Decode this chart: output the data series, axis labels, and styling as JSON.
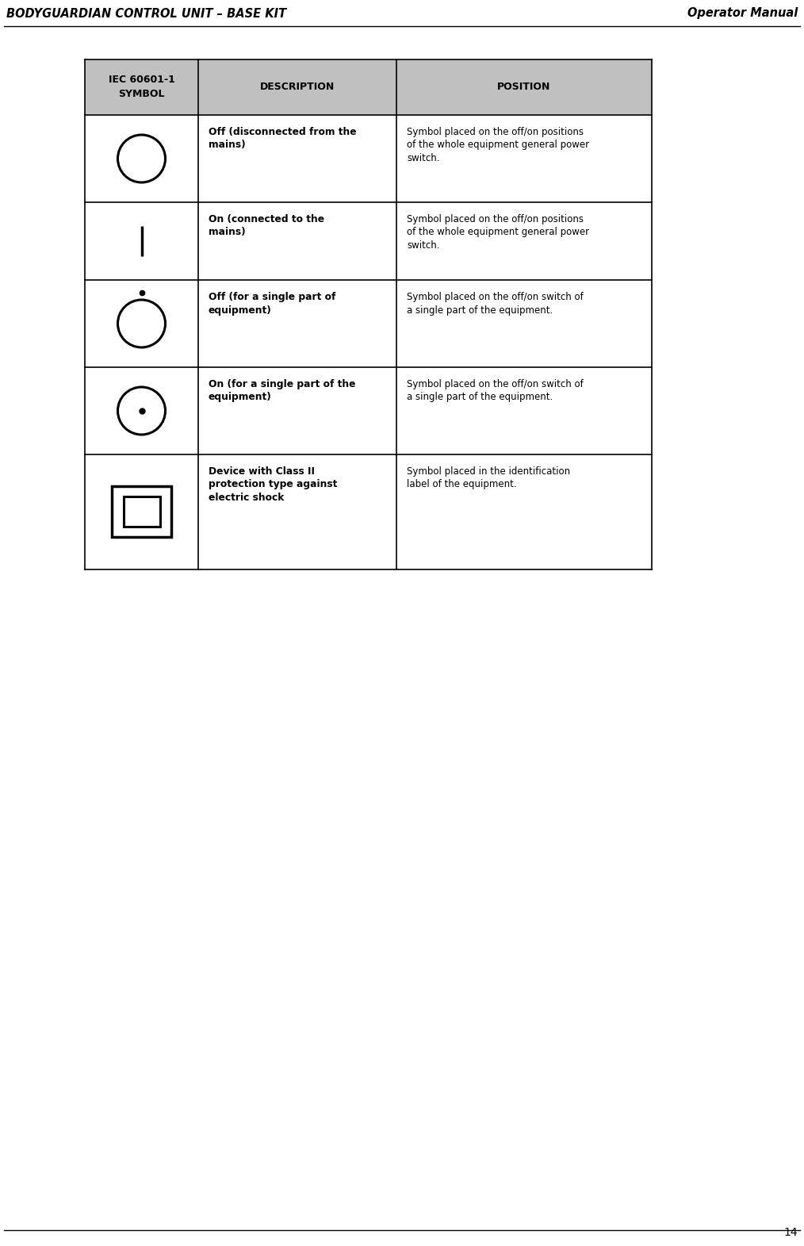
{
  "title_left": "BODYGUARDIAN CONTROL UNIT – BASE KIT",
  "title_right": "Operator Manual",
  "page_number": "14",
  "header_col1": "IEC 60601-1\nSYMBOL",
  "header_col2": "DESCRIPTION",
  "header_col3": "POSITION",
  "header_bg": "#c0c0c0",
  "table_border_color": "#000000",
  "rows": [
    {
      "symbol_type": "circle_open",
      "description": "Off (disconnected from the\nmains)",
      "position": "Symbol placed on the off/on positions\nof the whole equipment general power\nswitch."
    },
    {
      "symbol_type": "vertical_line",
      "description": "On (connected to the\nmains)",
      "position": "Symbol placed on the off/on positions\nof the whole equipment general power\nswitch."
    },
    {
      "symbol_type": "circle_open_dot_above",
      "description": "Off (for a single part of\nequipment)",
      "position": "Symbol placed on the off/on switch of\na single part of the equipment."
    },
    {
      "symbol_type": "circle_dot_inside",
      "description": "On (for a single part of the\nequipment)",
      "position": "Symbol placed on the off/on switch of\na single part of the equipment."
    },
    {
      "symbol_type": "double_square",
      "description": "Device with Class II\nprotection type against\nelectric shock",
      "position": "Symbol placed in the identification\nlabel of the equipment."
    }
  ],
  "fig_width": 10.14,
  "fig_height": 15.71,
  "bg_color": "#ffffff",
  "text_color": "#000000",
  "line_color": "#000000"
}
